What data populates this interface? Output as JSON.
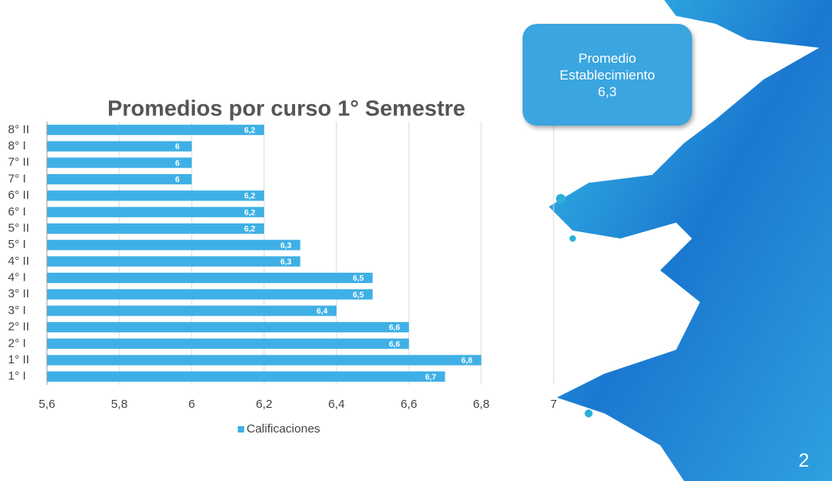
{
  "slide": {
    "box_label": "Promedio Establecimiento",
    "box_value": "6,3",
    "page_number": "2"
  },
  "chart_data": {
    "type": "hbar",
    "title": "Promedios por curso  1° Semestre",
    "categories": [
      "1° I",
      "1° II",
      "2° I",
      "2° II",
      "3° I",
      "3° II",
      "4° I",
      "4° II",
      "5° I",
      "5° II",
      "6° I",
      "6° II",
      "7° I",
      "7° II",
      "8° I",
      "8° II"
    ],
    "series": [
      {
        "name": "Calificaciones",
        "color": "#3fb0e6",
        "values": [
          6.7,
          6.8,
          6.6,
          6.6,
          6.4,
          6.5,
          6.5,
          6.3,
          6.3,
          6.2,
          6.2,
          6.2,
          6,
          6,
          6,
          6.2
        ],
        "value_labels": [
          "6,7",
          "6,8",
          "6,6",
          "6,6",
          "6,4",
          "6,5",
          "6,5",
          "6,3",
          "6,3",
          "6,2",
          "6,2",
          "6,2",
          "6",
          "6",
          "6",
          "6,2"
        ]
      }
    ],
    "xlim": [
      5.6,
      7
    ],
    "xticks": [
      {
        "value": 5.6,
        "label": "5,6"
      },
      {
        "value": 5.8,
        "label": "5,8"
      },
      6,
      {
        "value": 6.2,
        "label": "6,2"
      },
      {
        "value": 6.4,
        "label": "6,4"
      },
      {
        "value": 6.6,
        "label": "6,6"
      },
      {
        "value": 6.8,
        "label": "6,8"
      },
      7
    ],
    "grid": true
  }
}
